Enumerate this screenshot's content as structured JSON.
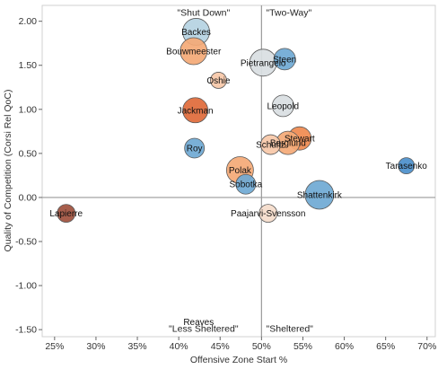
{
  "chart_data": {
    "type": "scatter",
    "xlabel": "Offensive Zone Start %",
    "ylabel": "Quality of Competition (Corsi Rel QoC)",
    "xlim": [
      0.235,
      0.71
    ],
    "ylim": [
      -1.58,
      2.18
    ],
    "x_ticks": [
      0.25,
      0.3,
      0.35,
      0.4,
      0.45,
      0.5,
      0.55,
      0.6,
      0.65,
      0.7
    ],
    "x_tick_labels": [
      "25%",
      "30%",
      "35%",
      "40%",
      "45%",
      "50%",
      "55%",
      "60%",
      "65%",
      "70%"
    ],
    "y_ticks": [
      2.0,
      1.5,
      1.0,
      0.5,
      0.0,
      -0.5,
      -1.0,
      -1.5
    ],
    "y_tick_labels": [
      "2.00",
      "1.50",
      "1.00",
      "0.50",
      "0.00",
      "-0.50",
      "-1.00",
      "-1.50"
    ],
    "grid": false,
    "reference_lines": {
      "x": 0.5,
      "y": 0.0
    },
    "quadrant_labels": [
      {
        "text": "\"Shut Down\"",
        "x": 0.43,
        "y": 2.1
      },
      {
        "text": "\"Two-Way\"",
        "x": 0.533,
        "y": 2.1
      },
      {
        "text": "\"Less Sheltered\"",
        "x": 0.43,
        "y": -1.49
      },
      {
        "text": "\"Sheltered\"",
        "x": 0.534,
        "y": -1.49
      }
    ],
    "points": [
      {
        "name": "Backes",
        "x": 0.421,
        "y": 1.88,
        "size": 15,
        "color": "#b5d3e2"
      },
      {
        "name": "Bouwmeester",
        "x": 0.418,
        "y": 1.66,
        "size": 15,
        "color": "#f4a976"
      },
      {
        "name": "Steen",
        "x": 0.528,
        "y": 1.57,
        "size": 12,
        "color": "#6fa9d4"
      },
      {
        "name": "Pietrangelo",
        "x": 0.502,
        "y": 1.53,
        "size": 15,
        "color": "#d9dee2"
      },
      {
        "name": "Oshie",
        "x": 0.448,
        "y": 1.33,
        "size": 9,
        "color": "#f7c8a8"
      },
      {
        "name": "Leopold",
        "x": 0.526,
        "y": 1.04,
        "size": 12,
        "color": "#d9dee2"
      },
      {
        "name": "Jackman",
        "x": 0.42,
        "y": 0.99,
        "size": 14,
        "color": "#df6a3a"
      },
      {
        "name": "Stewart",
        "x": 0.546,
        "y": 0.67,
        "size": 13,
        "color": "#f08a4f"
      },
      {
        "name": "Berglund",
        "x": 0.532,
        "y": 0.62,
        "size": 13,
        "color": "#f4a976"
      },
      {
        "name": "Schultz",
        "x": 0.511,
        "y": 0.6,
        "size": 11,
        "color": "#f7c8a8"
      },
      {
        "name": "Roy",
        "x": 0.419,
        "y": 0.56,
        "size": 11,
        "color": "#6fa9d4"
      },
      {
        "name": "Tarasenko",
        "x": 0.675,
        "y": 0.36,
        "size": 9,
        "color": "#4b8fcb"
      },
      {
        "name": "Polak",
        "x": 0.474,
        "y": 0.31,
        "size": 15,
        "color": "#f4a976"
      },
      {
        "name": "Sobotka",
        "x": 0.481,
        "y": 0.15,
        "size": 11,
        "color": "#6fa9d4"
      },
      {
        "name": "Shattenkirk",
        "x": 0.57,
        "y": 0.03,
        "size": 16,
        "color": "#6fa9d4"
      },
      {
        "name": "Lapierre",
        "x": 0.264,
        "y": -0.18,
        "size": 10,
        "color": "#a0503d"
      },
      {
        "name": "Paajarvi-Svensson",
        "x": 0.508,
        "y": -0.18,
        "size": 10,
        "color": "#f5dccb"
      },
      {
        "name": "Reaves",
        "x": 0.424,
        "y": -1.41,
        "size": 0,
        "color": "#e8a07a"
      }
    ]
  }
}
